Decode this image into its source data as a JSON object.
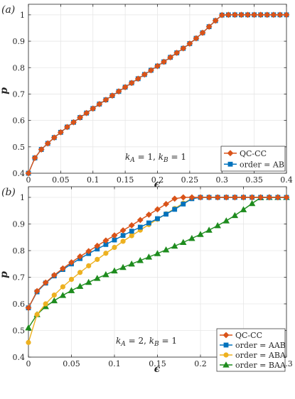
{
  "chart_data": [
    {
      "panel_label": "(a)",
      "type": "line",
      "xlabel": "ϵ",
      "ylabel": "p",
      "xlim": [
        0,
        0.4
      ],
      "ylim": [
        0.4,
        1.04
      ],
      "xticks": [
        0,
        0.05,
        0.1,
        0.15,
        0.2,
        0.25,
        0.3,
        0.35,
        0.4
      ],
      "xtick_labels": [
        "0",
        "0.05",
        "0.1",
        "0.15",
        "0.2",
        "0.25",
        "0.3",
        "0.35",
        "0.4"
      ],
      "yticks": [
        0.4,
        0.5,
        0.6,
        0.7,
        0.8,
        0.9,
        1
      ],
      "ytick_labels": [
        "0.4",
        "0.5",
        "0.6",
        "0.7",
        "0.8",
        "0.9",
        "1"
      ],
      "grid": true,
      "legend_position": "bottom-right",
      "annotation": "k_A = 1, k_B = 1",
      "series": [
        {
          "name": "QC-CC",
          "color": "#d95319",
          "marker": "diamond",
          "x": [
            0,
            0.01,
            0.02,
            0.03,
            0.04,
            0.05,
            0.06,
            0.07,
            0.08,
            0.09,
            0.1,
            0.11,
            0.12,
            0.13,
            0.14,
            0.15,
            0.16,
            0.17,
            0.18,
            0.19,
            0.2,
            0.21,
            0.22,
            0.23,
            0.24,
            0.25,
            0.26,
            0.27,
            0.28,
            0.29,
            0.3,
            0.31,
            0.32,
            0.33,
            0.34,
            0.35,
            0.36,
            0.37,
            0.38,
            0.39,
            0.4
          ],
          "y": [
            0.4,
            0.458,
            0.49,
            0.513,
            0.535,
            0.555,
            0.575,
            0.593,
            0.611,
            0.628,
            0.645,
            0.662,
            0.678,
            0.694,
            0.71,
            0.726,
            0.742,
            0.758,
            0.774,
            0.79,
            0.806,
            0.822,
            0.839,
            0.856,
            0.873,
            0.891,
            0.911,
            0.932,
            0.955,
            0.978,
            0.999,
            1,
            1,
            1,
            1,
            1,
            1,
            1,
            1,
            1,
            1
          ]
        },
        {
          "name": "order = AB",
          "color": "#0072bd",
          "marker": "square",
          "x": [
            0,
            0.01,
            0.02,
            0.03,
            0.04,
            0.05,
            0.06,
            0.07,
            0.08,
            0.09,
            0.1,
            0.11,
            0.12,
            0.13,
            0.14,
            0.15,
            0.16,
            0.17,
            0.18,
            0.19,
            0.2,
            0.21,
            0.22,
            0.23,
            0.24,
            0.25,
            0.26,
            0.27,
            0.28,
            0.29,
            0.3,
            0.31,
            0.32,
            0.33,
            0.34,
            0.35,
            0.36,
            0.37,
            0.38,
            0.39,
            0.4
          ],
          "y": [
            0.4,
            0.458,
            0.49,
            0.513,
            0.535,
            0.555,
            0.575,
            0.593,
            0.611,
            0.628,
            0.645,
            0.662,
            0.678,
            0.694,
            0.71,
            0.726,
            0.742,
            0.758,
            0.774,
            0.79,
            0.806,
            0.822,
            0.839,
            0.856,
            0.873,
            0.891,
            0.911,
            0.932,
            0.955,
            0.978,
            0.999,
            1,
            1,
            1,
            1,
            1,
            1,
            1,
            1,
            1,
            1
          ]
        }
      ]
    },
    {
      "panel_label": "(b)",
      "type": "line",
      "xlabel": "ϵ",
      "ylabel": "p",
      "xlim": [
        0,
        0.3
      ],
      "ylim": [
        0.4,
        1.04
      ],
      "xticks": [
        0,
        0.05,
        0.1,
        0.15,
        0.2,
        0.25,
        0.3
      ],
      "xtick_labels": [
        "0",
        "0.05",
        "0.1",
        "0.15",
        "0.2",
        "0.25",
        "0.3"
      ],
      "yticks": [
        0.4,
        0.5,
        0.6,
        0.7,
        0.8,
        0.9,
        1
      ],
      "ytick_labels": [
        "0.4",
        "0.5",
        "0.6",
        "0.7",
        "0.8",
        "0.9",
        "1"
      ],
      "grid": true,
      "legend_position": "bottom-right",
      "annotation": "k_A = 2, k_B = 1",
      "series": [
        {
          "name": "QC-CC",
          "color": "#d95319",
          "marker": "diamond",
          "x": [
            0,
            0.01,
            0.02,
            0.03,
            0.04,
            0.05,
            0.06,
            0.07,
            0.08,
            0.09,
            0.1,
            0.11,
            0.12,
            0.13,
            0.14,
            0.15,
            0.16,
            0.17,
            0.18,
            0.19,
            0.2,
            0.21,
            0.22,
            0.23,
            0.24,
            0.25,
            0.26,
            0.27,
            0.28,
            0.29,
            0.3
          ],
          "y": [
            0.585,
            0.648,
            0.68,
            0.708,
            0.733,
            0.756,
            0.778,
            0.798,
            0.818,
            0.838,
            0.857,
            0.876,
            0.895,
            0.915,
            0.935,
            0.955,
            0.975,
            0.995,
            1,
            1,
            1,
            1,
            1,
            1,
            1,
            1,
            1,
            1,
            1,
            1,
            1
          ]
        },
        {
          "name": "order = AAB",
          "color": "#0072bd",
          "marker": "square",
          "x": [
            0,
            0.01,
            0.02,
            0.03,
            0.04,
            0.05,
            0.06,
            0.07,
            0.08,
            0.09,
            0.1,
            0.11,
            0.12,
            0.13,
            0.14,
            0.15,
            0.16,
            0.17,
            0.18,
            0.19,
            0.2,
            0.21,
            0.22,
            0.23,
            0.24,
            0.25,
            0.26,
            0.27,
            0.28,
            0.29,
            0.3
          ],
          "y": [
            0.585,
            0.645,
            0.678,
            0.705,
            0.729,
            0.75,
            0.77,
            0.789,
            0.806,
            0.823,
            0.84,
            0.857,
            0.873,
            0.888,
            0.904,
            0.92,
            0.937,
            0.955,
            0.975,
            0.995,
            1,
            1,
            1,
            1,
            1,
            1,
            1,
            1,
            1,
            1,
            1
          ]
        },
        {
          "name": "order = ABA",
          "color": "#edb120",
          "marker": "circle",
          "x": [
            0,
            0.01,
            0.02,
            0.03,
            0.04,
            0.05,
            0.06,
            0.07,
            0.08,
            0.09,
            0.1,
            0.11,
            0.12,
            0.13,
            0.14,
            0.15,
            0.16,
            0.17,
            0.18,
            0.19,
            0.2,
            0.21,
            0.22,
            0.23,
            0.24,
            0.25,
            0.26,
            0.27,
            0.28,
            0.29,
            0.3
          ],
          "y": [
            0.455,
            0.56,
            0.6,
            0.633,
            0.664,
            0.692,
            0.718,
            0.743,
            0.767,
            0.79,
            0.812,
            0.835,
            0.856,
            0.877,
            0.898,
            0.918,
            0.938,
            0.958,
            0.978,
            0.996,
            1,
            1,
            1,
            1,
            1,
            1,
            1,
            1,
            1,
            1,
            1
          ]
        },
        {
          "name": "order = BAA",
          "color": "#1e8c1e",
          "marker": "triangle",
          "x": [
            0,
            0.01,
            0.02,
            0.03,
            0.04,
            0.05,
            0.06,
            0.07,
            0.08,
            0.09,
            0.1,
            0.11,
            0.12,
            0.13,
            0.14,
            0.15,
            0.16,
            0.17,
            0.18,
            0.19,
            0.2,
            0.21,
            0.22,
            0.23,
            0.24,
            0.25,
            0.26,
            0.27,
            0.28,
            0.29,
            0.3
          ],
          "y": [
            0.51,
            0.56,
            0.59,
            0.612,
            0.632,
            0.65,
            0.666,
            0.681,
            0.696,
            0.71,
            0.724,
            0.737,
            0.75,
            0.763,
            0.776,
            0.789,
            0.803,
            0.817,
            0.831,
            0.846,
            0.861,
            0.877,
            0.894,
            0.912,
            0.932,
            0.954,
            0.977,
            0.999,
            1,
            1,
            1
          ]
        }
      ]
    }
  ]
}
